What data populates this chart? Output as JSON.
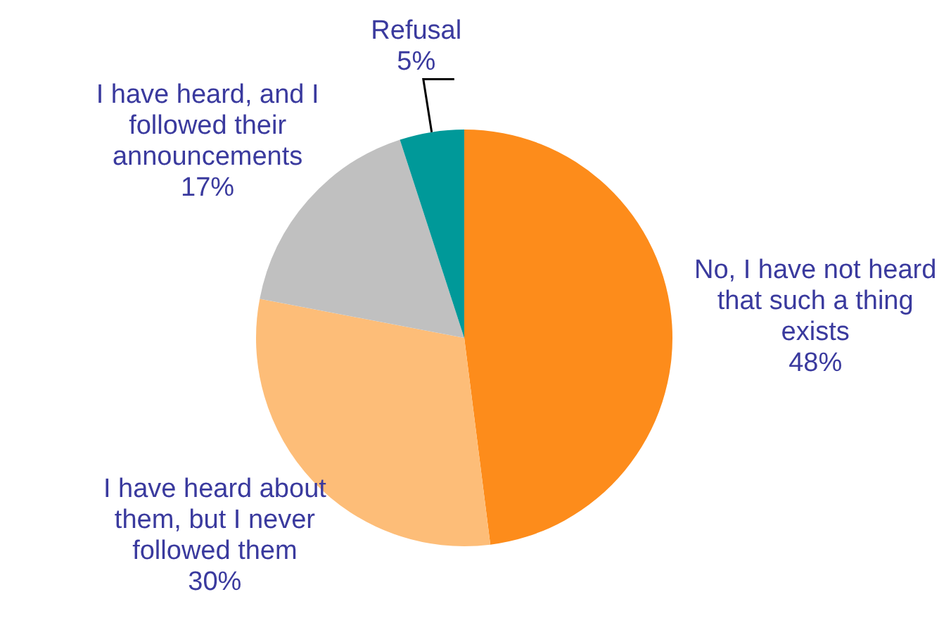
{
  "chart_data": {
    "type": "pie",
    "categories": [
      "No, I have not heard that such a thing exists",
      "I have heard about them, but I never followed them",
      "I have heard, and I followed their announcements",
      "Refusal"
    ],
    "values": [
      48,
      30,
      17,
      5
    ],
    "value_labels": [
      "48%",
      "30%",
      "17%",
      "5%"
    ],
    "colors": [
      "#fd8c1b",
      "#fdbd78",
      "#c0c0c0",
      "#009999"
    ],
    "legend": false
  }
}
